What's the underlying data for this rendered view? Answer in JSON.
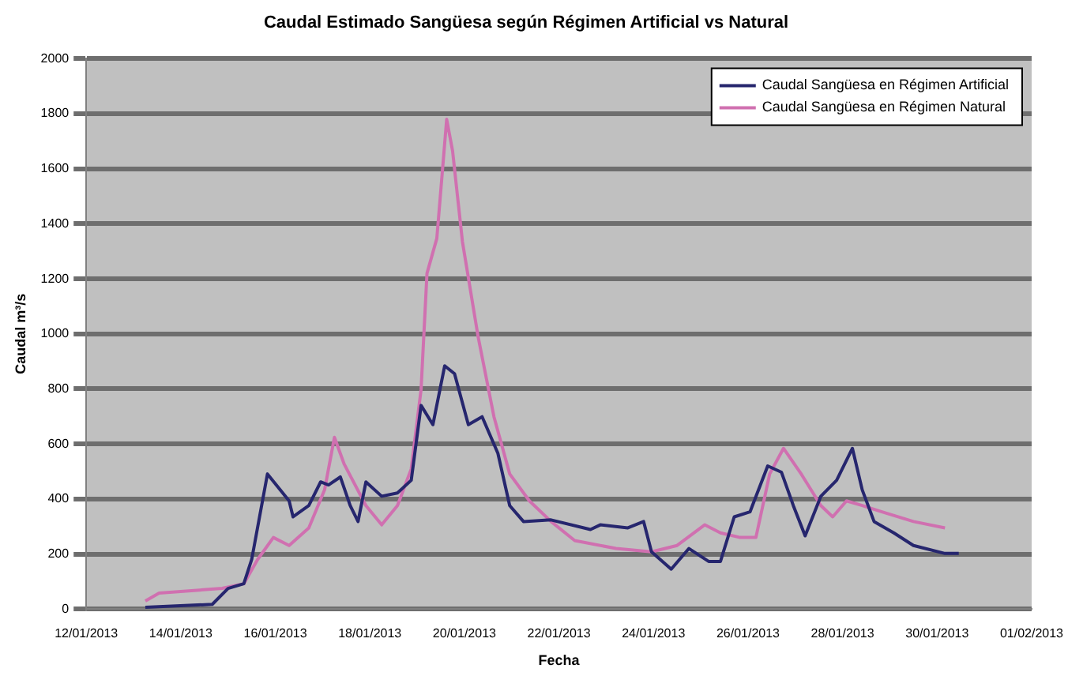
{
  "chart_data": {
    "type": "line",
    "title": "Caudal Estimado Sangüesa según Régimen Artificial vs Natural",
    "xlabel": "Fecha",
    "ylabel": "Caudal m³/s",
    "xlim": [
      "2013-01-12",
      "2013-02-01"
    ],
    "xticks": [
      {
        "value": "2013-01-12",
        "label": "12/01/2013"
      },
      {
        "value": "2013-01-14",
        "label": "14/01/2013"
      },
      {
        "value": "2013-01-16",
        "label": "16/01/2013"
      },
      {
        "value": "2013-01-18",
        "label": "18/01/2013"
      },
      {
        "value": "2013-01-20",
        "label": "20/01/2013"
      },
      {
        "value": "2013-01-22",
        "label": "22/01/2013"
      },
      {
        "value": "2013-01-24",
        "label": "24/01/2013"
      },
      {
        "value": "2013-01-26",
        "label": "26/01/2013"
      },
      {
        "value": "2013-01-28",
        "label": "28/01/2013"
      },
      {
        "value": "2013-01-30",
        "label": "30/01/2013"
      },
      {
        "value": "2013-02-01",
        "label": "01/02/2013"
      }
    ],
    "ylim": [
      0,
      2000
    ],
    "yticks": [
      0,
      200,
      400,
      600,
      800,
      1000,
      1200,
      1400,
      1600,
      1800,
      2000
    ],
    "grid": "y",
    "legend": "top right",
    "marker": "none",
    "line_style": "solid",
    "series": [
      {
        "name": "Caudal Sangüesa en Régimen Artificial",
        "color": "#26266e",
        "x": [
          "2013-01-13T06:00",
          "2013-01-14T16:00",
          "2013-01-15T00:00",
          "2013-01-15T08:00",
          "2013-01-15T12:00",
          "2013-01-15T20:00",
          "2013-01-16T07:00",
          "2013-01-16T09:00",
          "2013-01-16T17:00",
          "2013-01-16T23:00",
          "2013-01-17T03:00",
          "2013-01-17T09:00",
          "2013-01-17T14:00",
          "2013-01-17T18:00",
          "2013-01-17T22:00",
          "2013-01-18T06:00",
          "2013-01-18T14:00",
          "2013-01-18T21:00",
          "2013-01-19T02:00",
          "2013-01-19T08:00",
          "2013-01-19T14:00",
          "2013-01-19T19:00",
          "2013-01-20T02:00",
          "2013-01-20T09:00",
          "2013-01-20T17:00",
          "2013-01-20T23:00",
          "2013-01-21T06:00",
          "2013-01-21T20:00",
          "2013-01-22T16:00",
          "2013-01-22T21:00",
          "2013-01-23T11:00",
          "2013-01-23T19:00",
          "2013-01-23T23:00",
          "2013-01-24T09:00",
          "2013-01-24T18:00",
          "2013-01-25T04:00",
          "2013-01-25T10:00",
          "2013-01-25T17:00",
          "2013-01-26T01:00",
          "2013-01-26T10:00",
          "2013-01-26T17:00",
          "2013-01-26T23:00",
          "2013-01-27T05:00",
          "2013-01-27T13:00",
          "2013-01-27T21:00",
          "2013-01-28T05:00",
          "2013-01-28T10:00",
          "2013-01-28T16:00",
          "2013-01-29T02:00",
          "2013-01-29T12:00",
          "2013-01-30T04:00",
          "2013-01-30T11:00"
        ],
        "values": [
          6,
          17,
          75,
          92,
          180,
          491,
          393,
          335,
          376,
          462,
          451,
          480,
          376,
          318,
          462,
          410,
          422,
          468,
          740,
          670,
          884,
          855,
          670,
          699,
          566,
          376,
          318,
          324,
          289,
          306,
          295,
          318,
          208,
          145,
          220,
          173,
          173,
          335,
          353,
          520,
          497,
          376,
          266,
          410,
          468,
          584,
          433,
          318,
          277,
          231,
          202,
          202
        ]
      },
      {
        "name": "Caudal Sangüesa en Régimen Natural",
        "color": "#d070b0",
        "x": [
          "2013-01-13T06:00",
          "2013-01-13T13:00",
          "2013-01-14T21:00",
          "2013-01-15T08:00",
          "2013-01-15T15:00",
          "2013-01-15T23:00",
          "2013-01-16T07:00",
          "2013-01-16T17:00",
          "2013-01-17T01:00",
          "2013-01-17T06:00",
          "2013-01-17T11:00",
          "2013-01-17T22:00",
          "2013-01-18T06:00",
          "2013-01-18T14:00",
          "2013-01-18T21:00",
          "2013-01-19T02:00",
          "2013-01-19T05:00",
          "2013-01-19T10:00",
          "2013-01-19T15:00",
          "2013-01-19T18:00",
          "2013-01-19T23:00",
          "2013-01-20T07:00",
          "2013-01-20T15:00",
          "2013-01-20T23:00",
          "2013-01-21T09:00",
          "2013-01-21T20:00",
          "2013-01-22T08:00",
          "2013-01-23T05:00",
          "2013-01-23T23:00",
          "2013-01-24T12:00",
          "2013-01-25T02:00",
          "2013-01-25T10:00",
          "2013-01-25T20:00",
          "2013-01-26T04:00",
          "2013-01-26T11:00",
          "2013-01-26T18:00",
          "2013-01-27T03:00",
          "2013-01-27T13:00",
          "2013-01-27T19:00",
          "2013-01-28T02:00",
          "2013-01-28T10:00",
          "2013-01-28T20:00",
          "2013-01-29T12:00",
          "2013-01-30T04:00"
        ],
        "values": [
          29,
          58,
          75,
          92,
          180,
          260,
          231,
          295,
          433,
          624,
          526,
          376,
          306,
          376,
          509,
          798,
          1220,
          1347,
          1780,
          1665,
          1335,
          988,
          699,
          491,
          393,
          318,
          249,
          220,
          208,
          231,
          306,
          277,
          260,
          260,
          491,
          584,
          491,
          376,
          335,
          393,
          376,
          353,
          318,
          295
        ]
      }
    ]
  }
}
